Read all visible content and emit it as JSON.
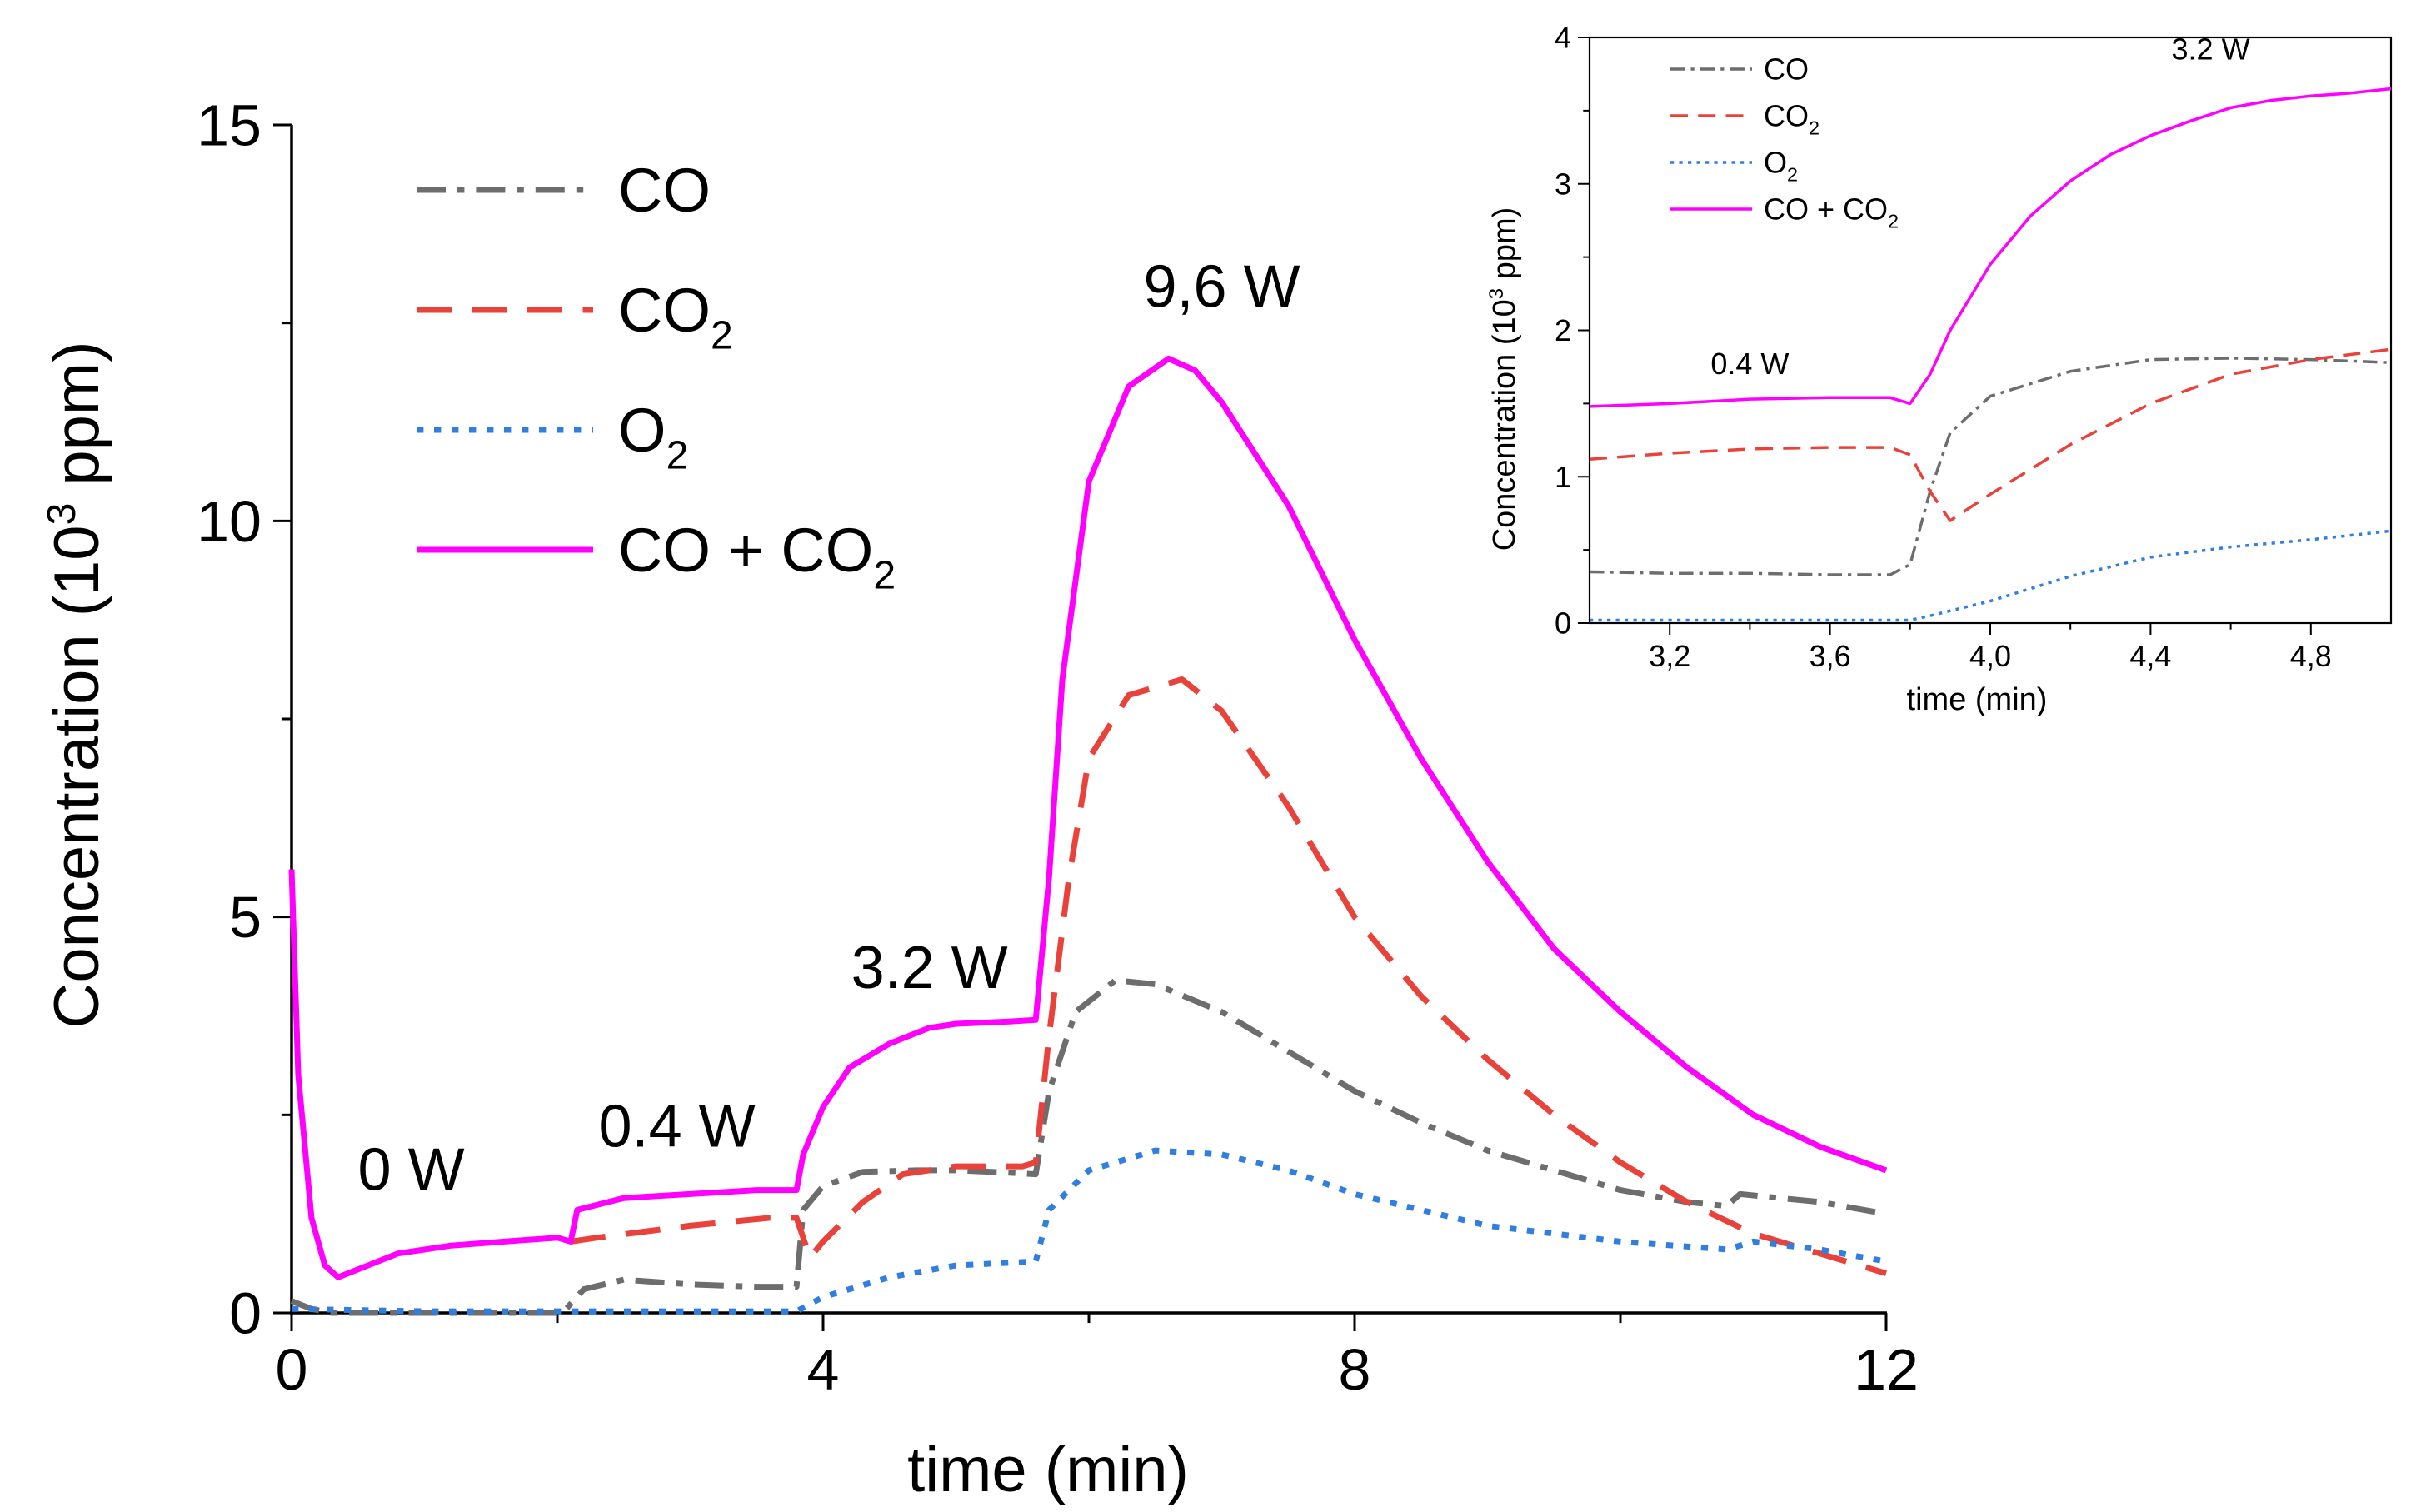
{
  "chart_data": [
    {
      "type": "line",
      "title": "",
      "xlabel": "time (min)",
      "ylabel": "Concentration (10",
      "ylabel_sup": "3",
      "ylabel_end": " ppm)",
      "xlim": [
        0,
        12
      ],
      "ylim": [
        0,
        15
      ],
      "x_ticks": [
        0,
        4,
        8,
        12
      ],
      "x_tick_labels": [
        "0",
        "4",
        "8",
        "12"
      ],
      "y_ticks": [
        0,
        5,
        10,
        15
      ],
      "y_tick_labels": [
        "0",
        "5",
        "10",
        "15"
      ],
      "legend_position": "top-left",
      "annotations": [
        {
          "text": "0 W",
          "x": 0.9,
          "y": 1.55
        },
        {
          "text": "0.4 W",
          "x": 2.9,
          "y": 2.1
        },
        {
          "text": "3.2 W",
          "x": 4.8,
          "y": 4.1
        },
        {
          "text": "9,6 W",
          "x": 7.0,
          "y": 12.7
        }
      ],
      "series": [
        {
          "name": "CO",
          "name_sub": "",
          "name_end": "",
          "color": "#6d6d6d",
          "dash": "dashdot",
          "x": [
            0,
            0.15,
            0.3,
            1.0,
            2.0,
            2.05,
            2.2,
            2.5,
            3.0,
            3.5,
            3.8,
            3.85,
            4.0,
            4.3,
            4.7,
            5.0,
            5.4,
            5.6,
            5.7,
            5.9,
            6.2,
            6.5,
            7.0,
            7.5,
            8.0,
            8.5,
            9.0,
            9.5,
            10.0,
            10.5,
            10.8,
            10.9,
            11.5,
            12.0
          ],
          "y": [
            0.15,
            0.05,
            0.0,
            0.0,
            0.0,
            0.02,
            0.3,
            0.42,
            0.36,
            0.33,
            0.33,
            1.3,
            1.6,
            1.78,
            1.8,
            1.8,
            1.77,
            1.75,
            2.8,
            3.8,
            4.2,
            4.15,
            3.8,
            3.3,
            2.8,
            2.4,
            2.05,
            1.8,
            1.55,
            1.4,
            1.35,
            1.5,
            1.4,
            1.25
          ]
        },
        {
          "name": "CO",
          "name_sub": "2",
          "name_end": "",
          "color": "#e8423a",
          "dash": "dash",
          "x": [
            2.1,
            2.3,
            3.0,
            3.6,
            3.8,
            3.9,
            4.0,
            4.3,
            4.6,
            5.0,
            5.5,
            5.6,
            5.7,
            5.85,
            6.0,
            6.3,
            6.7,
            7.0,
            7.5,
            8.0,
            8.5,
            9.0,
            9.5,
            10.0,
            10.5,
            11.0,
            11.5,
            12.0
          ],
          "y": [
            0.9,
            0.95,
            1.1,
            1.2,
            1.2,
            0.7,
            0.9,
            1.4,
            1.75,
            1.85,
            1.85,
            1.9,
            3.5,
            5.5,
            7.0,
            7.8,
            8.0,
            7.6,
            6.4,
            5.0,
            4.0,
            3.2,
            2.5,
            1.9,
            1.4,
            1.0,
            0.75,
            0.5
          ]
        },
        {
          "name": "O",
          "name_sub": "2",
          "name_end": "",
          "color": "#2f7ee0",
          "dash": "dot",
          "x": [
            0,
            1.0,
            2.0,
            3.0,
            3.8,
            4.0,
            4.5,
            5.0,
            5.6,
            5.7,
            6.0,
            6.5,
            7.0,
            7.5,
            8.0,
            9.0,
            10.0,
            10.8,
            11.0,
            11.5,
            12.0
          ],
          "y": [
            0.05,
            0.02,
            0.02,
            0.02,
            0.02,
            0.2,
            0.45,
            0.6,
            0.65,
            1.3,
            1.8,
            2.05,
            2.0,
            1.8,
            1.5,
            1.1,
            0.9,
            0.8,
            0.9,
            0.8,
            0.65
          ]
        },
        {
          "name": "CO + CO",
          "name_sub": "2",
          "name_end": "",
          "color": "#ff00ff",
          "dash": "solid",
          "x": [
            0,
            0.05,
            0.15,
            0.25,
            0.35,
            0.5,
            0.8,
            1.2,
            1.6,
            2.0,
            2.1,
            2.15,
            2.5,
            3.0,
            3.5,
            3.8,
            3.85,
            4.0,
            4.2,
            4.5,
            4.8,
            5.0,
            5.4,
            5.6,
            5.7,
            5.8,
            6.0,
            6.3,
            6.6,
            6.8,
            7.0,
            7.5,
            8.0,
            8.5,
            9.0,
            9.5,
            10.0,
            10.5,
            11.0,
            11.5,
            12.0
          ],
          "y": [
            5.6,
            3.0,
            1.2,
            0.6,
            0.45,
            0.55,
            0.75,
            0.85,
            0.9,
            0.95,
            0.9,
            1.3,
            1.45,
            1.5,
            1.55,
            1.55,
            2.0,
            2.6,
            3.1,
            3.4,
            3.6,
            3.65,
            3.68,
            3.7,
            5.5,
            8.0,
            10.5,
            11.7,
            12.05,
            11.9,
            11.5,
            10.2,
            8.5,
            7.0,
            5.7,
            4.6,
            3.8,
            3.1,
            2.5,
            2.1,
            1.8
          ]
        }
      ]
    },
    {
      "type": "line",
      "title": "",
      "xlabel": "time (min)",
      "ylabel": "Concentration (10",
      "ylabel_sup": "3",
      "ylabel_end": " ppm)",
      "xlim": [
        3.0,
        5.0
      ],
      "ylim": [
        0,
        4
      ],
      "x_ticks": [
        3.2,
        3.6,
        4.0,
        4.4,
        4.8
      ],
      "x_tick_labels": [
        "3,2",
        "3,6",
        "4,0",
        "4,4",
        "4,8"
      ],
      "y_ticks": [
        0,
        1,
        2,
        3,
        4
      ],
      "y_tick_labels": [
        "0",
        "1",
        "2",
        "3",
        "4"
      ],
      "legend_position": "top-left",
      "annotations": [
        {
          "text": "0.4 W",
          "x": 3.4,
          "y": 1.7
        },
        {
          "text": "3.2 W",
          "x": 4.55,
          "y": 3.85
        }
      ],
      "series": [
        {
          "name": "CO",
          "name_sub": "",
          "name_end": "",
          "color": "#6d6d6d",
          "dash": "dashdot",
          "x": [
            3.0,
            3.2,
            3.4,
            3.6,
            3.75,
            3.8,
            3.85,
            3.9,
            4.0,
            4.2,
            4.4,
            4.6,
            4.8,
            5.0
          ],
          "y": [
            0.35,
            0.34,
            0.34,
            0.33,
            0.33,
            0.4,
            0.9,
            1.3,
            1.55,
            1.72,
            1.8,
            1.81,
            1.8,
            1.78
          ]
        },
        {
          "name": "CO",
          "name_sub": "2",
          "name_end": "",
          "color": "#e8423a",
          "dash": "dash",
          "x": [
            3.0,
            3.2,
            3.4,
            3.6,
            3.75,
            3.8,
            3.85,
            3.9,
            4.0,
            4.2,
            4.4,
            4.6,
            4.8,
            5.0
          ],
          "y": [
            1.12,
            1.16,
            1.19,
            1.2,
            1.2,
            1.15,
            0.9,
            0.7,
            0.88,
            1.22,
            1.5,
            1.7,
            1.8,
            1.87
          ]
        },
        {
          "name": "O",
          "name_sub": "2",
          "name_end": "",
          "color": "#2f7ee0",
          "dash": "dot",
          "x": [
            3.0,
            3.2,
            3.4,
            3.6,
            3.8,
            3.85,
            4.0,
            4.2,
            4.4,
            4.6,
            4.8,
            5.0
          ],
          "y": [
            0.02,
            0.02,
            0.02,
            0.02,
            0.02,
            0.05,
            0.15,
            0.32,
            0.45,
            0.52,
            0.57,
            0.63
          ]
        },
        {
          "name": "CO + CO",
          "name_sub": "2",
          "name_end": "",
          "color": "#ff00ff",
          "dash": "solid",
          "x": [
            3.0,
            3.2,
            3.4,
            3.6,
            3.75,
            3.8,
            3.85,
            3.9,
            4.0,
            4.1,
            4.2,
            4.3,
            4.4,
            4.5,
            4.6,
            4.7,
            4.8,
            4.9,
            5.0
          ],
          "y": [
            1.48,
            1.5,
            1.53,
            1.54,
            1.54,
            1.5,
            1.7,
            2.0,
            2.45,
            2.78,
            3.02,
            3.2,
            3.33,
            3.43,
            3.52,
            3.57,
            3.6,
            3.62,
            3.65
          ]
        }
      ]
    }
  ]
}
